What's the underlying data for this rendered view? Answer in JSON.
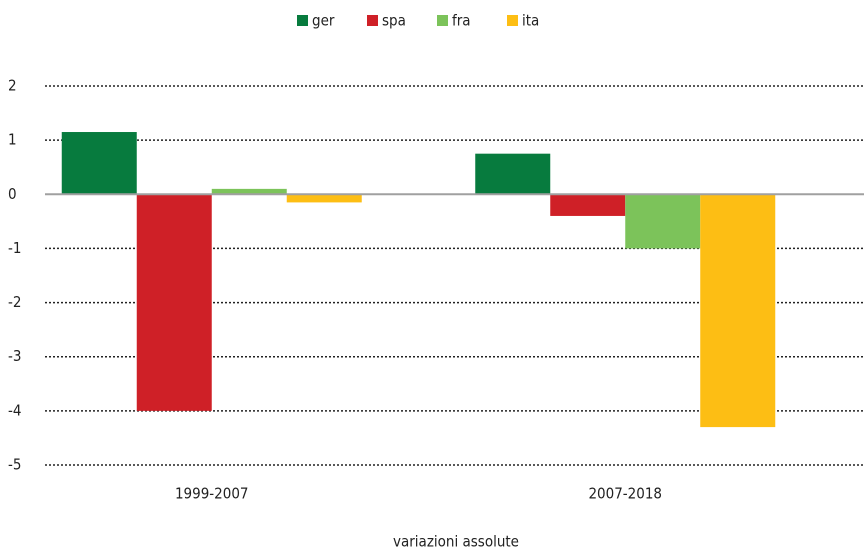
{
  "chart_data": {
    "type": "bar",
    "categories": [
      "1999-2007",
      "2007-2018"
    ],
    "series": [
      {
        "name": "ger",
        "color": "#077b3e",
        "values": [
          1.15,
          0.75
        ]
      },
      {
        "name": "spa",
        "color": "#cf2027",
        "values": [
          -4.0,
          -0.4
        ]
      },
      {
        "name": "fra",
        "color": "#7cc35a",
        "values": [
          0.1,
          -1.0
        ]
      },
      {
        "name": "ita",
        "color": "#fdbe14",
        "values": [
          -0.15,
          -4.3
        ]
      }
    ],
    "x_label": "variazioni assolute",
    "ylim": [
      -5,
      2
    ],
    "yticks": [
      -5,
      -4,
      -3,
      -2,
      -1,
      0,
      1,
      2
    ],
    "grid": true,
    "legend": "top"
  }
}
